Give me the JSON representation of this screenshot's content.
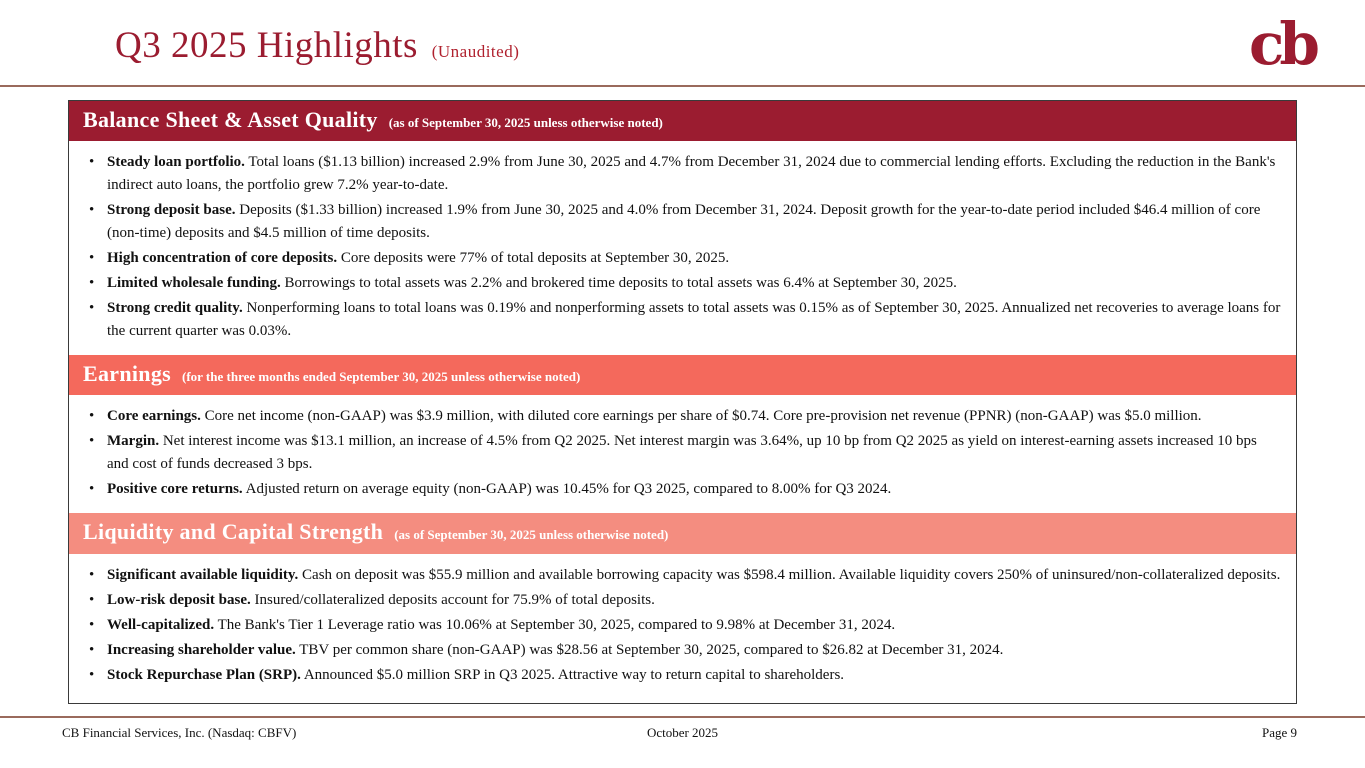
{
  "header": {
    "title": "Q3 2025 Highlights",
    "suffix": "(Unaudited)",
    "logo": "cb"
  },
  "colors": {
    "brand": "#9b1c30",
    "divider": "#9a6a5c",
    "section1": "#9b1c30",
    "section2": "#f4695c",
    "section3": "#f48d80"
  },
  "sections": [
    {
      "title": "Balance Sheet & Asset Quality",
      "subtitle": "(as of September 30, 2025 unless otherwise noted)",
      "color": "#9b1c30",
      "bullets": [
        {
          "lead": "Steady loan portfolio.",
          "text": "Total loans ($1.13 billion) increased 2.9% from June 30, 2025 and 4.7% from December 31, 2024 due to commercial lending efforts. Excluding the reduction in the Bank's indirect auto loans, the portfolio grew 7.2% year-to-date."
        },
        {
          "lead": "Strong deposit base.",
          "text": "Deposits ($1.33 billion) increased 1.9% from June 30, 2025 and 4.0% from December 31, 2024. Deposit growth for the year-to-date period included $46.4 million of core (non-time) deposits and $4.5 million of time deposits."
        },
        {
          "lead": "High concentration of core deposits.",
          "text": "Core deposits were 77% of total deposits at September 30, 2025."
        },
        {
          "lead": "Limited wholesale funding.",
          "text": "Borrowings to total assets was 2.2% and brokered time deposits to total assets was 6.4% at September 30, 2025."
        },
        {
          "lead": "Strong credit quality.",
          "text": "Nonperforming loans to total loans was 0.19% and nonperforming assets to total assets was 0.15% as of September 30, 2025. Annualized net recoveries to average loans for the current quarter was 0.03%."
        }
      ]
    },
    {
      "title": "Earnings",
      "subtitle": "(for the three months ended September 30, 2025 unless otherwise noted)",
      "color": "#f4695c",
      "bullets": [
        {
          "lead": "Core earnings.",
          "text": "Core net income (non-GAAP) was $3.9 million, with diluted core earnings per share of $0.74. Core pre-provision net revenue (PPNR) (non-GAAP) was $5.0 million."
        },
        {
          "lead": "Margin.",
          "text": "Net interest income was $13.1 million, an increase of 4.5% from Q2 2025.  Net interest margin was 3.64%, up 10 bp from Q2 2025 as yield on interest-earning assets increased 10 bps and cost of funds decreased 3 bps."
        },
        {
          "lead": "Positive core returns.",
          "text": "Adjusted return on average equity (non-GAAP) was 10.45% for Q3 2025, compared to 8.00% for Q3 2024."
        }
      ]
    },
    {
      "title": "Liquidity and Capital Strength",
      "subtitle": "(as of September 30, 2025 unless otherwise noted)",
      "color": "#f48d80",
      "bullets": [
        {
          "lead": "Significant available liquidity.",
          "text": "Cash on deposit was $55.9 million and available borrowing capacity was $598.4 million. Available liquidity covers 250% of uninsured/non-collateralized deposits."
        },
        {
          "lead": "Low-risk deposit base.",
          "text": "Insured/collateralized deposits account for 75.9% of total deposits."
        },
        {
          "lead": "Well-capitalized.",
          "text": "The Bank's Tier 1 Leverage ratio was 10.06% at September 30, 2025, compared to 9.98% at December 31, 2024."
        },
        {
          "lead": "Increasing shareholder value.",
          "text": "TBV per common share (non-GAAP) was $28.56 at September 30, 2025, compared to $26.82 at December 31, 2024."
        },
        {
          "lead": "Stock Repurchase Plan (SRP).",
          "text": "Announced $5.0 million SRP in Q3 2025. Attractive way to return capital to shareholders."
        }
      ]
    }
  ],
  "footer": {
    "left": "CB Financial Services, Inc. (Nasdaq: CBFV)",
    "center": "October 2025",
    "right": "Page 9"
  }
}
